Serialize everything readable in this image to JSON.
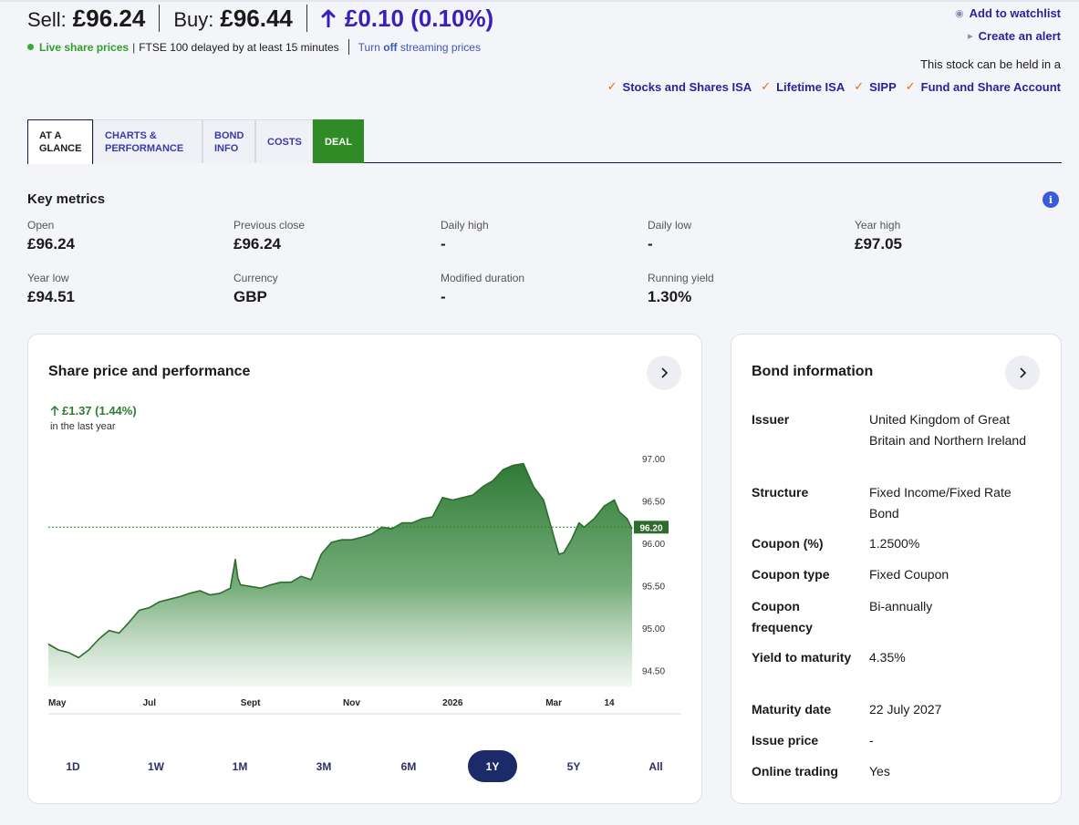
{
  "header": {
    "sell_label": "Sell:",
    "sell_value": "£96.24",
    "buy_label": "Buy:",
    "buy_value": "£96.44",
    "change": "£0.10 (0.10%)",
    "live_label": "Live share prices",
    "delay_note": "FTSE 100 delayed by at least 15 minutes",
    "stream_prefix": "Turn",
    "stream_bold": "off",
    "stream_suffix": "streaming prices",
    "watchlist": "Add to watchlist",
    "alert": "Create an alert",
    "held_in": "This stock can be held in a",
    "accounts": [
      "Stocks and Shares ISA",
      "Lifetime ISA",
      "SIPP",
      "Fund and Share Account"
    ]
  },
  "tabs": [
    {
      "label": "AT A GLANCE",
      "active": true
    },
    {
      "label": "CHARTS & PERFORMANCE",
      "active": false
    },
    {
      "label": "BOND INFO",
      "active": false
    },
    {
      "label": "COSTS",
      "active": false
    },
    {
      "label": "DEAL",
      "active": false
    }
  ],
  "key_metrics": {
    "title": "Key metrics",
    "items": [
      {
        "label": "Open",
        "value": "£96.24"
      },
      {
        "label": "Previous close",
        "value": "£96.24"
      },
      {
        "label": "Daily high",
        "value": "-"
      },
      {
        "label": "Daily low",
        "value": "-"
      },
      {
        "label": "Year high",
        "value": "£97.05"
      },
      {
        "label": "Year low",
        "value": "£94.51"
      },
      {
        "label": "Currency",
        "value": "GBP"
      },
      {
        "label": "Modified duration",
        "value": "-"
      },
      {
        "label": "Running yield",
        "value": "1.30%"
      }
    ]
  },
  "chart_card": {
    "title": "Share price and performance",
    "performance": "£1.37 (1.44%)",
    "performance_sub": "in the last year",
    "current_label": "96.20",
    "ranges": [
      "1D",
      "1W",
      "1M",
      "3M",
      "6M",
      "1Y",
      "5Y",
      "All"
    ],
    "active_range": "1Y"
  },
  "chart_data": {
    "type": "area",
    "title": "Share price and performance",
    "xlabel": "",
    "ylabel": "",
    "ylim": [
      94.32,
      97.15
    ],
    "y_ticks": [
      97.0,
      96.5,
      96.0,
      95.5,
      95.0,
      94.5
    ],
    "x_tick_labels": [
      "May",
      "Jul",
      "Sept",
      "Nov",
      "2026",
      "Mar",
      "14"
    ],
    "x_tick_positions": [
      0,
      2.0,
      4.0,
      6.0,
      8.0,
      10.0,
      11.1
    ],
    "x_range": [
      0,
      11.55
    ],
    "current_value": 96.2,
    "reference_line": 96.2,
    "series": [
      {
        "x": [
          0,
          0.2,
          0.4,
          0.6,
          0.8,
          1.0,
          1.2,
          1.4,
          1.6,
          1.8,
          2.0,
          2.2,
          2.4,
          2.6,
          2.8,
          3.0,
          3.2,
          3.4,
          3.6,
          3.7,
          3.75,
          3.8,
          4.0,
          4.2,
          4.4,
          4.6,
          4.8,
          5.0,
          5.2,
          5.4,
          5.6,
          5.8,
          6.0,
          6.2,
          6.4,
          6.6,
          6.8,
          7.0,
          7.2,
          7.4,
          7.6,
          7.8,
          8.0,
          8.2,
          8.4,
          8.6,
          8.8,
          9.0,
          9.2,
          9.4,
          9.6,
          9.8,
          9.95,
          10.1,
          10.2,
          10.35,
          10.5,
          10.6,
          10.7,
          10.8,
          11.0,
          11.2,
          11.3,
          11.45,
          11.55
        ],
        "y": [
          94.82,
          94.75,
          94.72,
          94.66,
          94.75,
          94.88,
          94.98,
          94.95,
          95.08,
          95.22,
          95.25,
          95.32,
          95.35,
          95.38,
          95.42,
          95.45,
          95.4,
          95.42,
          95.48,
          95.82,
          95.6,
          95.52,
          95.5,
          95.48,
          95.52,
          95.55,
          95.55,
          95.62,
          95.58,
          95.88,
          96.02,
          96.05,
          96.05,
          96.08,
          96.12,
          96.2,
          96.18,
          96.25,
          96.25,
          96.3,
          96.32,
          96.55,
          96.52,
          96.55,
          96.58,
          96.68,
          96.75,
          96.88,
          96.93,
          96.95,
          96.68,
          96.52,
          96.2,
          95.88,
          95.9,
          96.05,
          96.25,
          96.2,
          96.25,
          96.3,
          96.45,
          96.52,
          96.38,
          96.3,
          96.18
        ]
      }
    ]
  },
  "bond_card": {
    "title": "Bond information",
    "rows": [
      {
        "key": "Issuer",
        "value": "United Kingdom of Great Britain and Northern Ireland"
      },
      {
        "key": "Structure",
        "value": "Fixed Income/Fixed Rate Bond"
      },
      {
        "key": "Coupon (%)",
        "value": "1.2500%"
      },
      {
        "key": "Coupon type",
        "value": "Fixed Coupon"
      },
      {
        "key": "Coupon frequency",
        "value": "Bi-annually"
      },
      {
        "key": "Yield to maturity",
        "value": "4.35%"
      },
      {
        "key": "Maturity date",
        "value": "22 July 2027"
      },
      {
        "key": "Issue price",
        "value": "-"
      },
      {
        "key": "Online trading",
        "value": "Yes"
      }
    ]
  },
  "colors": {
    "accent": "#2d1f9a",
    "up": "#3b1fb8",
    "live": "#2f9e2b",
    "deal": "#2f8b26",
    "chart_line": "#2e6b2e",
    "range_active": "#1b2a68"
  }
}
